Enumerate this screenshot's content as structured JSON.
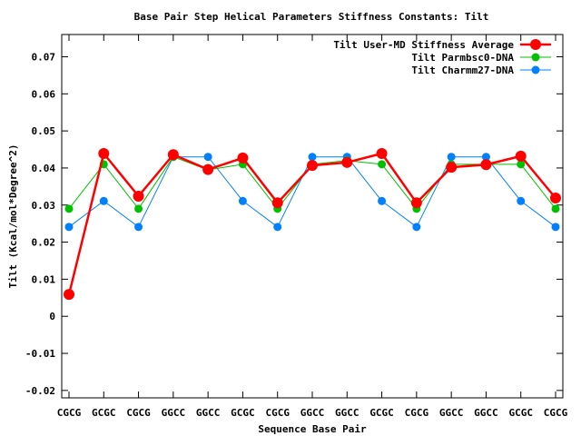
{
  "chart_data": {
    "type": "line",
    "title": "Base Pair Step Helical Parameters Stiffness Constants: Tilt",
    "xlabel": "Sequence Base Pair",
    "ylabel": "Tilt (Kcal/mol*Degree^2)",
    "categories": [
      "CGCG",
      "GCGC",
      "CGCG",
      "GGCC",
      "GGCC",
      "GCGC",
      "CGCG",
      "GGCC",
      "GGCC",
      "GCGC",
      "CGCG",
      "GGCC",
      "GGCC",
      "GCGC",
      "CGCG"
    ],
    "ylim": [
      -0.022,
      0.076
    ],
    "y_ticks": [
      -0.02,
      -0.01,
      0,
      0.01,
      0.02,
      0.03,
      0.04,
      0.05,
      0.06,
      0.07
    ],
    "y_tick_labels": [
      "-0.02",
      "-0.01",
      "0",
      "0.01",
      "0.02",
      "0.03",
      "0.04",
      "0.05",
      "0.06",
      "0.07"
    ],
    "legend_position": "top-right",
    "grid": false,
    "series": [
      {
        "name": "Tilt User-MD Stiffness Average",
        "color": "#ff0000",
        "values": [
          0.0059,
          0.0439,
          0.0324,
          0.0436,
          0.0396,
          0.0427,
          0.0306,
          0.0407,
          0.0415,
          0.0439,
          0.0306,
          0.0402,
          0.0409,
          0.0432,
          0.0319
        ]
      },
      {
        "name": "Tilt Parmbsc0-DNA",
        "color": "#00c000",
        "values": [
          0.029,
          0.041,
          0.029,
          0.043,
          0.0395,
          0.041,
          0.029,
          0.041,
          0.042,
          0.041,
          0.029,
          0.041,
          0.041,
          0.041,
          0.029
        ]
      },
      {
        "name": "Tilt Charmm27-DNA",
        "color": "#0080ff",
        "values": [
          0.0241,
          0.0311,
          0.0241,
          0.043,
          0.043,
          0.0311,
          0.0241,
          0.043,
          0.043,
          0.0311,
          0.0241,
          0.043,
          0.043,
          0.0311,
          0.0241
        ]
      }
    ]
  }
}
